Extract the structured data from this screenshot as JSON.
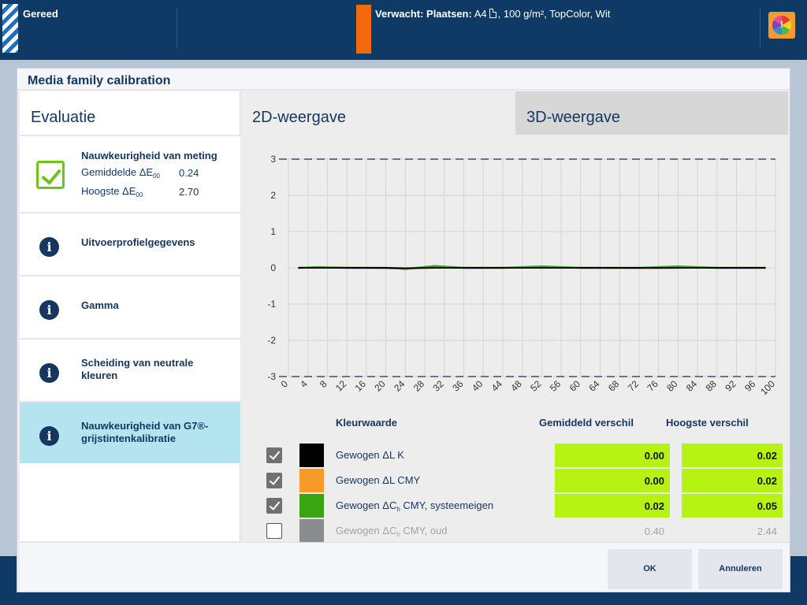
{
  "topbar": {
    "status": "Gereed",
    "expected_label": "Verwacht: Plaatsen:",
    "expected_size": "A4",
    "expected_media": ", 100 g/m², TopColor, Wit",
    "warning_icon": "color-wheel-warning-icon"
  },
  "dialog": {
    "title": "Media family calibration"
  },
  "sidebar": {
    "title": "Evaluatie",
    "items": [
      {
        "label": "Nauwkeurigheid van meting",
        "icon": "check-icon",
        "metric1_label": "Gemiddelde ΔE",
        "metric1_sub": "00",
        "metric1_value": "0.24",
        "metric2_label": "Hoogste ΔE",
        "metric2_sub": "00",
        "metric2_value": "2.70"
      },
      {
        "label": "Uitvoerprofielgegevens",
        "icon": "info-icon"
      },
      {
        "label": "Gamma",
        "icon": "info-icon"
      },
      {
        "label_line1": "Scheiding van neutrale",
        "label_line2": "kleuren",
        "icon": "info-icon"
      },
      {
        "label_line1": "Nauwkeurigheid van G7®-",
        "label_line2": "grijstintenkalibratie",
        "icon": "info-icon",
        "active": true
      }
    ]
  },
  "tabs": {
    "tab2d": "2D-weergave",
    "tab3d": "3D-weergave",
    "active": "2D-weergave"
  },
  "chart_data": {
    "type": "line",
    "x": [
      0,
      4,
      8,
      12,
      16,
      20,
      24,
      28,
      32,
      36,
      40,
      44,
      48,
      52,
      56,
      60,
      64,
      68,
      72,
      76,
      80,
      84,
      88,
      92,
      96,
      100
    ],
    "x_ticks": [
      0,
      4,
      8,
      12,
      16,
      20,
      24,
      28,
      32,
      36,
      40,
      44,
      48,
      52,
      56,
      60,
      64,
      68,
      72,
      76,
      80,
      84,
      88,
      92,
      96,
      100
    ],
    "y_ticks": [
      3,
      2,
      1,
      0,
      -1,
      -2,
      -3
    ],
    "xlim": [
      0,
      100
    ],
    "ylim": [
      -3,
      3
    ],
    "reference_lines": [
      3,
      -3
    ],
    "grid": true,
    "series": [
      {
        "name": "Gewogen ΔL CMY",
        "color": "#f79a27",
        "points": [
          [
            2,
            0
          ],
          [
            8,
            0.01
          ],
          [
            16,
            0
          ],
          [
            24,
            -0.02
          ],
          [
            30,
            0.01
          ],
          [
            40,
            0
          ],
          [
            52,
            0.01
          ],
          [
            64,
            0
          ],
          [
            76,
            -0.01
          ],
          [
            84,
            0.01
          ],
          [
            90,
            0
          ],
          [
            98,
            0
          ]
        ]
      },
      {
        "name": "Gewogen ΔC CMY, systeemeigen",
        "color": "#3aa513",
        "points": [
          [
            2,
            0
          ],
          [
            6,
            0.02
          ],
          [
            12,
            0
          ],
          [
            20,
            0
          ],
          [
            24,
            -0.03
          ],
          [
            30,
            0.05
          ],
          [
            36,
            0
          ],
          [
            44,
            0
          ],
          [
            52,
            0.04
          ],
          [
            60,
            0
          ],
          [
            72,
            0
          ],
          [
            80,
            0.04
          ],
          [
            88,
            0
          ],
          [
            98,
            0
          ]
        ]
      },
      {
        "name": "Gewogen ΔL K",
        "color": "#000000",
        "points": [
          [
            2,
            0
          ],
          [
            10,
            0
          ],
          [
            20,
            0
          ],
          [
            24,
            -0.01
          ],
          [
            30,
            0
          ],
          [
            50,
            0
          ],
          [
            70,
            0
          ],
          [
            90,
            0
          ],
          [
            98,
            0
          ]
        ]
      }
    ]
  },
  "legend": {
    "header_name": "Kleurwaarde",
    "header_avg": "Gemiddeld verschil",
    "header_max": "Hoogste verschil",
    "rows": [
      {
        "checked": true,
        "color": "#000000",
        "name": "Gewogen ΔL K",
        "sub": "",
        "name_rest": "",
        "avg": "0.00",
        "max": "0.02"
      },
      {
        "checked": true,
        "color": "#f79a27",
        "name": "Gewogen ΔL CMY",
        "sub": "",
        "name_rest": "",
        "avg": "0.00",
        "max": "0.02"
      },
      {
        "checked": true,
        "color": "#3aa513",
        "name": "Gewogen ΔC",
        "sub": "h",
        "name_rest": " CMY, systeemeigen",
        "avg": "0.02",
        "max": "0.05"
      },
      {
        "checked": false,
        "color": "#8a8d90",
        "name": "Gewogen ΔC",
        "sub": "h",
        "name_rest": " CMY, oud",
        "avg": "0.40",
        "max": "2.44"
      }
    ]
  },
  "footer": {
    "ok_label": "OK",
    "cancel_label": "Annuleren"
  }
}
